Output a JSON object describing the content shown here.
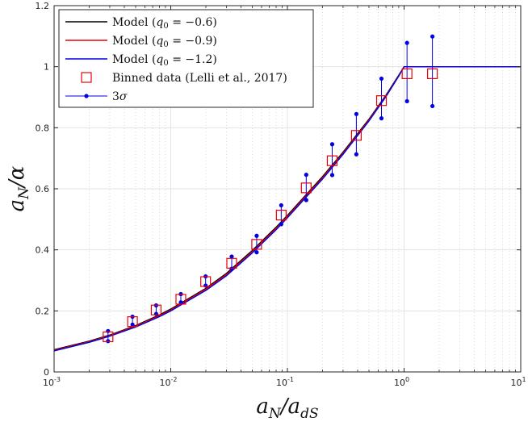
{
  "chart_data": {
    "type": "line",
    "title": "",
    "xlabel": "a_N / a_dS",
    "ylabel": "a_N / α",
    "xscale": "log",
    "xlim": [
      0.001,
      10
    ],
    "ylim": [
      0,
      1.2
    ],
    "grid": true,
    "legend_position": "top-left",
    "x_ticks": [
      {
        "value": 0.001,
        "base": "10",
        "exp": "-3"
      },
      {
        "value": 0.01,
        "base": "10",
        "exp": "-2"
      },
      {
        "value": 0.1,
        "base": "10",
        "exp": "-1"
      },
      {
        "value": 1,
        "base": "10",
        "exp": "0"
      },
      {
        "value": 10,
        "base": "10",
        "exp": "1"
      }
    ],
    "y_ticks": [
      {
        "value": 0,
        "label": "0"
      },
      {
        "value": 0.2,
        "label": "0.2"
      },
      {
        "value": 0.4,
        "label": "0.4"
      },
      {
        "value": 0.6,
        "label": "0.6"
      },
      {
        "value": 0.8,
        "label": "0.8"
      },
      {
        "value": 1.0,
        "label": "1"
      },
      {
        "value": 1.2,
        "label": "1.2"
      }
    ],
    "series": [
      {
        "name": "Model (q0 = −0.6)",
        "color": "#000000",
        "x": [
          0.001,
          0.002,
          0.003,
          0.005,
          0.008,
          0.01,
          0.02,
          0.03,
          0.05,
          0.08,
          0.1,
          0.2,
          0.3,
          0.5,
          0.7,
          0.9,
          1.0,
          10
        ],
        "y": [
          0.073,
          0.101,
          0.121,
          0.152,
          0.187,
          0.206,
          0.274,
          0.323,
          0.398,
          0.474,
          0.513,
          0.64,
          0.72,
          0.828,
          0.907,
          0.972,
          1.0,
          1.0
        ]
      },
      {
        "name": "Model (q0 = −0.9)",
        "color": "#e8000b",
        "x": [
          0.001,
          0.002,
          0.003,
          0.005,
          0.008,
          0.01,
          0.02,
          0.03,
          0.05,
          0.08,
          0.1,
          0.2,
          0.3,
          0.5,
          0.7,
          0.9,
          1.0,
          10
        ],
        "y": [
          0.071,
          0.099,
          0.119,
          0.15,
          0.184,
          0.203,
          0.271,
          0.319,
          0.394,
          0.47,
          0.509,
          0.636,
          0.716,
          0.825,
          0.904,
          0.97,
          1.0,
          1.0
        ]
      },
      {
        "name": "Model (q0 = −1.2)",
        "color": "#0000e6",
        "x": [
          0.001,
          0.002,
          0.003,
          0.005,
          0.008,
          0.01,
          0.02,
          0.03,
          0.05,
          0.08,
          0.1,
          0.2,
          0.3,
          0.5,
          0.7,
          0.9,
          1.0,
          10
        ],
        "y": [
          0.069,
          0.097,
          0.117,
          0.147,
          0.181,
          0.2,
          0.267,
          0.315,
          0.39,
          0.466,
          0.505,
          0.632,
          0.713,
          0.822,
          0.902,
          0.969,
          1.0,
          1.0
        ]
      }
    ],
    "binned_data": {
      "name": "Binned data (Lelli et al., 2017)",
      "color": "#e8000b",
      "x": [
        0.0029,
        0.0047,
        0.0075,
        0.0122,
        0.0199,
        0.0333,
        0.0545,
        0.0885,
        0.145,
        0.242,
        0.39,
        0.64,
        1.06,
        1.75
      ],
      "y": [
        0.115,
        0.165,
        0.203,
        0.238,
        0.296,
        0.356,
        0.418,
        0.514,
        0.603,
        0.692,
        0.775,
        0.889,
        0.977,
        0.977
      ]
    },
    "error_bars": {
      "name": "3σ",
      "color": "#0000e6",
      "low": [
        0.101,
        0.155,
        0.19,
        0.228,
        0.283,
        0.338,
        0.392,
        0.484,
        0.563,
        0.645,
        0.713,
        0.831,
        0.887,
        0.871
      ],
      "high": [
        0.134,
        0.181,
        0.218,
        0.255,
        0.313,
        0.378,
        0.446,
        0.546,
        0.646,
        0.746,
        0.845,
        0.961,
        1.078,
        1.099
      ]
    },
    "legend": [
      {
        "kind": "line",
        "color": "#000000",
        "text": "Model (",
        "math": "q",
        "sub": "0",
        "rest": " = −0.6)"
      },
      {
        "kind": "line",
        "color": "#e8000b",
        "text": "Model (",
        "math": "q",
        "sub": "0",
        "rest": " = −0.9)"
      },
      {
        "kind": "line",
        "color": "#0000e6",
        "text": "Model (",
        "math": "q",
        "sub": "0",
        "rest": " = −1.2)"
      },
      {
        "kind": "square",
        "color": "#e8000b",
        "text": "Binned data (Lelli et al., 2017)",
        "math": "",
        "sub": "",
        "rest": ""
      },
      {
        "kind": "errorbar",
        "color": "#0000e6",
        "text": "3",
        "math": "σ",
        "sub": "",
        "rest": ""
      }
    ],
    "xlabel_parts": {
      "a": "a",
      "N": "N",
      "slash": "/",
      "a2": "a",
      "dS": "dS"
    },
    "ylabel_parts": {
      "a": "a",
      "N": "N",
      "slash": "/",
      "alpha": "α"
    }
  }
}
